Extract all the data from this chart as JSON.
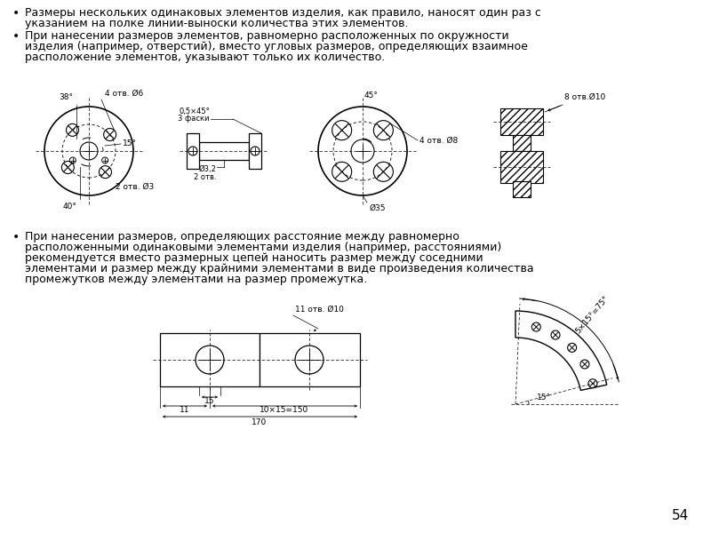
{
  "bg_color": "#ffffff",
  "text_color": "#000000",
  "line_color": "#000000",
  "fs_body": 9.0,
  "fs_small": 6.5,
  "fs_tiny": 6.0,
  "bullet1_line1": "Размеры нескольких одинаковых элементов изделия, как правило, наносят один раз с",
  "bullet1_line2": "указанием на полке линии-выноски количества этих элементов.",
  "bullet2_line1": "При нанесении размеров элементов, равномерно расположенных по окружности",
  "bullet2_line2": "изделия (например, отверстий), вместо угловых размеров, определяющих взаимное",
  "bullet2_line3": "расположение элементов, указывают только их количество.",
  "bullet3_line1": "При нанесении размеров, определяющих расстояние между равномерно",
  "bullet3_line2": "расположенными одинаковыми элементами изделия (например, расстояниями)",
  "bullet3_line3": "рекомендуется вместо размерных цепей наносить размер между соседними",
  "bullet3_line4": "элементами и размер между крайними элементами в виде произведения количества",
  "bullet3_line5": "промежутков между элементами на размер промежутка.",
  "page_number": "54",
  "d1_label1": "38°",
  "d1_label2": "4 отв. Ø6",
  "d1_label3": "15°",
  "d1_label4": "40°",
  "d1_label5": "2 отв. Ø3",
  "d2_label1": "0,5×45°",
  "d2_label2": "3 фаски",
  "d2_label3": "Ø3,2",
  "d2_label4": "2 отв.",
  "d3_label1": "45°",
  "d3_label2": "4 отв. Ø8",
  "d3_label3": "Ø35",
  "d4_label1": "8 отв.Ø10",
  "d5_label1": "11 отв. Ø10",
  "d5_label2": "15",
  "d5_label3": "11",
  "d5_label4": "10×15=150",
  "d5_label5": "170",
  "d6_label1": "5×15°=75°",
  "d6_label2": "15°"
}
